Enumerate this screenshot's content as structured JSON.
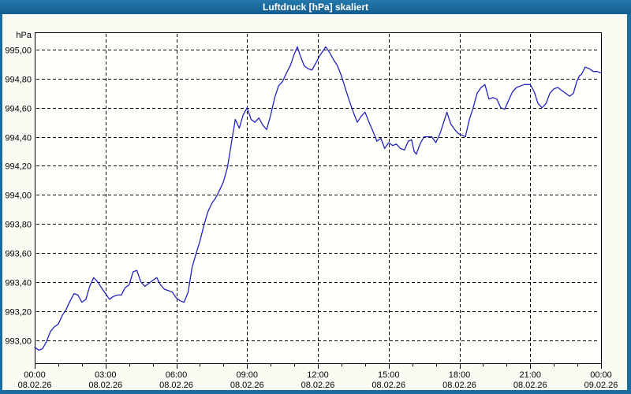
{
  "window": {
    "title": "Luftdruck [hPa] skaliert",
    "chrome_color": "#1a6b9e",
    "content_background": "#fbfbf4"
  },
  "chart_data": {
    "type": "line",
    "title": "Luftdruck [hPa] skaliert",
    "xlabel": "",
    "ylabel": "hPa",
    "unit_label": "hPa",
    "series_name": "Luftdruck",
    "line_color": "#2222c2",
    "grid": "dashed-black",
    "plot_background": "#fffffb",
    "x_axis": {
      "range_hours": [
        0,
        24
      ],
      "minor_tick_every_hours": 1,
      "ticks": [
        {
          "t": 0,
          "time": "00:00",
          "date": "08.02.26"
        },
        {
          "t": 3,
          "time": "03:00",
          "date": "08.02.26"
        },
        {
          "t": 6,
          "time": "06:00",
          "date": "08.02.26"
        },
        {
          "t": 9,
          "time": "09:00",
          "date": "08.02.26"
        },
        {
          "t": 12,
          "time": "12:00",
          "date": "08.02.26"
        },
        {
          "t": 15,
          "time": "15:00",
          "date": "08.02.26"
        },
        {
          "t": 18,
          "time": "18:00",
          "date": "08.02.26"
        },
        {
          "t": 21,
          "time": "21:00",
          "date": "08.02.26"
        },
        {
          "t": 24,
          "time": "00:00",
          "date": "09.02.26"
        }
      ]
    },
    "y_axis": {
      "min": 992.84,
      "max": 995.12,
      "ticks": [
        {
          "v": 995.0,
          "label": "995,00"
        },
        {
          "v": 994.8,
          "label": "994,80"
        },
        {
          "v": 994.6,
          "label": "994,60"
        },
        {
          "v": 994.4,
          "label": "994,40"
        },
        {
          "v": 994.2,
          "label": "994,20"
        },
        {
          "v": 994.0,
          "label": "994,00"
        },
        {
          "v": 993.8,
          "label": "993,80"
        },
        {
          "v": 993.6,
          "label": "993,60"
        },
        {
          "v": 993.4,
          "label": "993,40"
        },
        {
          "v": 993.2,
          "label": "993,20"
        },
        {
          "v": 993.0,
          "label": "993,00"
        }
      ]
    },
    "points": [
      [
        0.0,
        992.95
      ],
      [
        0.17,
        992.93
      ],
      [
        0.33,
        992.94
      ],
      [
        0.5,
        992.99
      ],
      [
        0.67,
        993.06
      ],
      [
        0.83,
        993.09
      ],
      [
        1.0,
        993.11
      ],
      [
        1.17,
        993.17
      ],
      [
        1.33,
        993.21
      ],
      [
        1.5,
        993.27
      ],
      [
        1.67,
        993.32
      ],
      [
        1.83,
        993.31
      ],
      [
        2.0,
        993.26
      ],
      [
        2.17,
        993.28
      ],
      [
        2.33,
        993.37
      ],
      [
        2.5,
        993.43
      ],
      [
        2.67,
        993.4
      ],
      [
        2.83,
        993.36
      ],
      [
        3.0,
        993.32
      ],
      [
        3.17,
        993.28
      ],
      [
        3.33,
        993.3
      ],
      [
        3.5,
        993.31
      ],
      [
        3.67,
        993.31
      ],
      [
        3.83,
        993.36
      ],
      [
        4.0,
        993.38
      ],
      [
        4.17,
        993.47
      ],
      [
        4.33,
        993.48
      ],
      [
        4.5,
        993.4
      ],
      [
        4.67,
        993.37
      ],
      [
        4.83,
        993.39
      ],
      [
        5.0,
        993.41
      ],
      [
        5.17,
        993.43
      ],
      [
        5.33,
        993.38
      ],
      [
        5.5,
        993.35
      ],
      [
        5.67,
        993.34
      ],
      [
        5.83,
        993.33
      ],
      [
        6.0,
        993.29
      ],
      [
        6.17,
        993.27
      ],
      [
        6.33,
        993.26
      ],
      [
        6.5,
        993.33
      ],
      [
        6.67,
        993.5
      ],
      [
        6.83,
        993.59
      ],
      [
        7.0,
        993.68
      ],
      [
        7.17,
        993.79
      ],
      [
        7.33,
        993.88
      ],
      [
        7.5,
        993.94
      ],
      [
        7.67,
        993.98
      ],
      [
        7.83,
        994.03
      ],
      [
        8.0,
        994.09
      ],
      [
        8.17,
        994.19
      ],
      [
        8.33,
        994.35
      ],
      [
        8.5,
        994.52
      ],
      [
        8.67,
        994.46
      ],
      [
        8.83,
        994.55
      ],
      [
        9.0,
        994.6
      ],
      [
        9.17,
        994.52
      ],
      [
        9.33,
        994.5
      ],
      [
        9.5,
        994.53
      ],
      [
        9.67,
        994.48
      ],
      [
        9.83,
        994.45
      ],
      [
        10.0,
        994.55
      ],
      [
        10.17,
        994.67
      ],
      [
        10.33,
        994.75
      ],
      [
        10.5,
        994.78
      ],
      [
        10.67,
        994.84
      ],
      [
        10.83,
        994.89
      ],
      [
        11.0,
        994.97
      ],
      [
        11.13,
        995.02
      ],
      [
        11.25,
        994.96
      ],
      [
        11.42,
        994.89
      ],
      [
        11.58,
        994.87
      ],
      [
        11.75,
        994.86
      ],
      [
        11.92,
        994.91
      ],
      [
        12.08,
        994.96
      ],
      [
        12.25,
        995.0
      ],
      [
        12.33,
        995.02
      ],
      [
        12.5,
        994.98
      ],
      [
        12.67,
        994.93
      ],
      [
        12.83,
        994.89
      ],
      [
        13.0,
        994.82
      ],
      [
        13.17,
        994.73
      ],
      [
        13.33,
        994.65
      ],
      [
        13.5,
        994.57
      ],
      [
        13.67,
        994.5
      ],
      [
        13.83,
        994.54
      ],
      [
        14.0,
        994.57
      ],
      [
        14.17,
        994.5
      ],
      [
        14.33,
        994.44
      ],
      [
        14.5,
        994.37
      ],
      [
        14.67,
        994.39
      ],
      [
        14.83,
        994.32
      ],
      [
        15.0,
        994.36
      ],
      [
        15.17,
        994.34
      ],
      [
        15.33,
        994.35
      ],
      [
        15.5,
        994.32
      ],
      [
        15.67,
        994.31
      ],
      [
        15.83,
        994.37
      ],
      [
        15.97,
        994.38
      ],
      [
        16.08,
        994.3
      ],
      [
        16.17,
        994.28
      ],
      [
        16.33,
        994.35
      ],
      [
        16.5,
        994.4
      ],
      [
        16.67,
        994.4
      ],
      [
        16.83,
        994.4
      ],
      [
        17.0,
        994.36
      ],
      [
        17.17,
        994.42
      ],
      [
        17.33,
        994.5
      ],
      [
        17.47,
        994.57
      ],
      [
        17.63,
        994.49
      ],
      [
        17.8,
        994.45
      ],
      [
        17.97,
        994.42
      ],
      [
        18.13,
        994.41
      ],
      [
        18.25,
        994.4
      ],
      [
        18.42,
        994.52
      ],
      [
        18.58,
        994.6
      ],
      [
        18.75,
        994.7
      ],
      [
        18.92,
        994.74
      ],
      [
        19.08,
        994.76
      ],
      [
        19.25,
        994.66
      ],
      [
        19.42,
        994.67
      ],
      [
        19.58,
        994.66
      ],
      [
        19.75,
        994.6
      ],
      [
        19.92,
        994.59
      ],
      [
        20.08,
        994.65
      ],
      [
        20.25,
        994.71
      ],
      [
        20.42,
        994.74
      ],
      [
        20.58,
        994.75
      ],
      [
        20.75,
        994.76
      ],
      [
        21.0,
        994.76
      ],
      [
        21.17,
        994.71
      ],
      [
        21.33,
        994.63
      ],
      [
        21.5,
        994.6
      ],
      [
        21.67,
        994.63
      ],
      [
        21.83,
        994.7
      ],
      [
        22.0,
        994.73
      ],
      [
        22.17,
        994.74
      ],
      [
        22.33,
        994.72
      ],
      [
        22.5,
        994.7
      ],
      [
        22.67,
        994.68
      ],
      [
        22.83,
        994.7
      ],
      [
        22.97,
        994.78
      ],
      [
        23.08,
        994.82
      ],
      [
        23.17,
        994.83
      ],
      [
        23.33,
        994.88
      ],
      [
        23.5,
        994.87
      ],
      [
        23.67,
        994.85
      ],
      [
        23.83,
        994.85
      ],
      [
        24.0,
        994.84
      ]
    ]
  }
}
